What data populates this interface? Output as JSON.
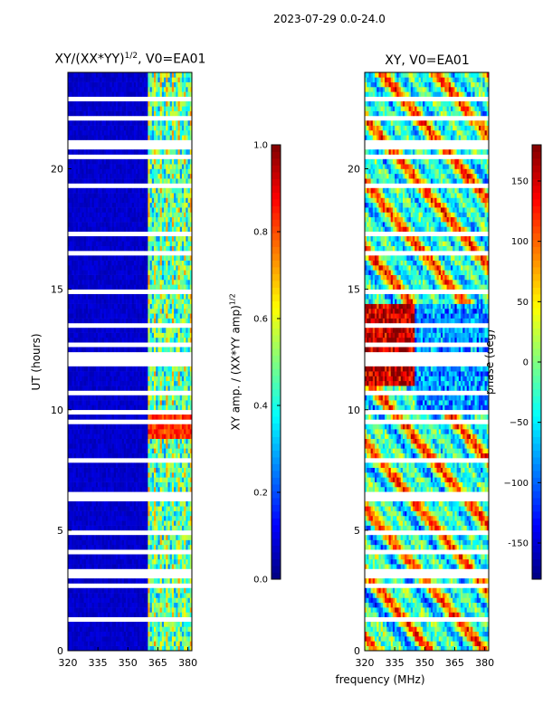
{
  "chart_data": [
    {
      "type": "heatmap",
      "title": "XY/(XX*YY)",
      "title_sup": "1/2",
      "title_suffix": ", V0=EA01",
      "ylabel": "UT (hours)",
      "x_range": [
        320,
        382
      ],
      "y_range": [
        0,
        24
      ],
      "xticks": [
        "320",
        "335",
        "350",
        "365",
        "380"
      ],
      "yticks": [
        "0",
        "5",
        "10",
        "15",
        "20"
      ],
      "colorbar": {
        "label": "XY amp. / (XX*YY amp)",
        "label_sup": "1/2",
        "range": [
          0.0,
          1.0
        ],
        "ticks": [
          "0.0",
          "0.2",
          "0.4",
          "0.6",
          "0.8",
          "1.0"
        ]
      },
      "description": "Low values (~0.05) across most frequencies; elevated values (0.3-0.9) in 360-382 MHz band; horizontal blank (flagged) rows."
    },
    {
      "type": "heatmap",
      "title": "XY, V0=EA01",
      "x_range": [
        320,
        382
      ],
      "y_range": [
        0,
        24
      ],
      "xticks": [
        "320",
        "335",
        "350",
        "365",
        "380"
      ],
      "yticks": [
        "0",
        "5",
        "10",
        "15",
        "20"
      ],
      "colorbar": {
        "label": "phase (deg)",
        "range": [
          -180,
          180
        ],
        "ticks": [
          "-150",
          "−100",
          "−50",
          "0",
          "50",
          "100",
          "150"
        ]
      },
      "description": "Phase varies widely across -180 to 180 deg; mostly positive (red) around 11-15 h near 320-345 MHz; flagged rows as white stripes."
    }
  ],
  "figure": {
    "suptitle": "2023-07-29 0.0-24.0",
    "xlabel": "frequency (MHz)"
  }
}
